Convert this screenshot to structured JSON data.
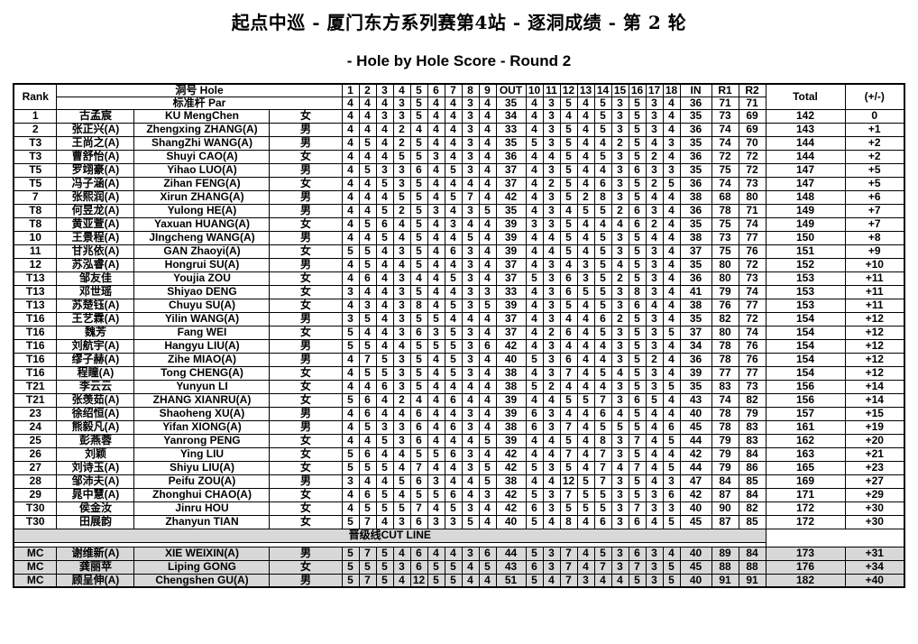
{
  "title": "起点中巡 - 厦门东方系列赛第4站 - 逐洞成绩 - 第 2 轮",
  "subtitle": "- Hole by Hole Score - Round 2",
  "table": {
    "header": {
      "rank": "Rank",
      "hole_label": "洞号 Hole",
      "par_label": "标准杆 Par",
      "hole_numbers": [
        "1",
        "2",
        "3",
        "4",
        "5",
        "6",
        "7",
        "8",
        "9",
        "OUT",
        "10",
        "11",
        "12",
        "13",
        "14",
        "15",
        "16",
        "17",
        "18",
        "IN",
        "R1",
        "R2"
      ],
      "par_values": [
        "4",
        "4",
        "4",
        "3",
        "5",
        "4",
        "4",
        "3",
        "4",
        "35",
        "4",
        "3",
        "5",
        "4",
        "5",
        "3",
        "5",
        "3",
        "4",
        "36",
        "71",
        "71"
      ],
      "total": "Total",
      "plus_minus": "(+/-)"
    },
    "cut_line_label": "晋级线CUT LINE",
    "players": [
      {
        "rank": "1",
        "name_cn": "古孟宸",
        "name_en": "KU MengChen",
        "gender": "女",
        "scores": [
          4,
          4,
          3,
          3,
          5,
          4,
          4,
          3,
          4,
          34,
          4,
          3,
          4,
          4,
          5,
          3,
          5,
          3,
          4,
          35,
          73,
          69
        ],
        "total": 142,
        "to_par": "0"
      },
      {
        "rank": "2",
        "name_cn": "张正兴(A)",
        "name_en": "Zhengxing ZHANG(A)",
        "gender": "男",
        "scores": [
          4,
          4,
          4,
          2,
          4,
          4,
          4,
          3,
          4,
          33,
          4,
          3,
          5,
          4,
          5,
          3,
          5,
          3,
          4,
          36,
          74,
          69
        ],
        "total": 143,
        "to_par": "+1"
      },
      {
        "rank": "T3",
        "name_cn": "王尚之(A)",
        "name_en": "ShangZhi WANG(A)",
        "gender": "男",
        "scores": [
          4,
          5,
          4,
          2,
          5,
          4,
          4,
          3,
          4,
          35,
          5,
          3,
          5,
          4,
          4,
          2,
          5,
          4,
          3,
          35,
          74,
          70
        ],
        "total": 144,
        "to_par": "+2"
      },
      {
        "rank": "T3",
        "name_cn": "曹舒怡(A)",
        "name_en": "Shuyi CAO(A)",
        "gender": "女",
        "scores": [
          4,
          4,
          4,
          5,
          5,
          3,
          4,
          3,
          4,
          36,
          4,
          4,
          5,
          4,
          5,
          3,
          5,
          2,
          4,
          36,
          72,
          72
        ],
        "total": 144,
        "to_par": "+2"
      },
      {
        "rank": "T5",
        "name_cn": "罗翊豪(A)",
        "name_en": "Yihao LUO(A)",
        "gender": "男",
        "scores": [
          4,
          5,
          3,
          3,
          6,
          4,
          5,
          3,
          4,
          37,
          4,
          3,
          5,
          4,
          4,
          3,
          6,
          3,
          3,
          35,
          75,
          72
        ],
        "total": 147,
        "to_par": "+5"
      },
      {
        "rank": "T5",
        "name_cn": "冯子涵(A)",
        "name_en": "Zihan FENG(A)",
        "gender": "女",
        "scores": [
          4,
          4,
          5,
          3,
          5,
          4,
          4,
          4,
          4,
          37,
          4,
          2,
          5,
          4,
          6,
          3,
          5,
          2,
          5,
          36,
          74,
          73
        ],
        "total": 147,
        "to_par": "+5"
      },
      {
        "rank": "7",
        "name_cn": "张熙润(A)",
        "name_en": "Xirun ZHANG(A)",
        "gender": "男",
        "scores": [
          4,
          4,
          4,
          5,
          5,
          4,
          5,
          7,
          4,
          42,
          4,
          3,
          5,
          2,
          8,
          3,
          5,
          4,
          4,
          38,
          68,
          80
        ],
        "total": 148,
        "to_par": "+6"
      },
      {
        "rank": "T8",
        "name_cn": "何昱龙(A)",
        "name_en": "Yulong HE(A)",
        "gender": "男",
        "scores": [
          4,
          4,
          5,
          2,
          5,
          3,
          4,
          3,
          5,
          35,
          4,
          3,
          4,
          5,
          5,
          2,
          6,
          3,
          4,
          36,
          78,
          71
        ],
        "total": 149,
        "to_par": "+7"
      },
      {
        "rank": "T8",
        "name_cn": "黄亚萱(A)",
        "name_en": "Yaxuan HUANG(A)",
        "gender": "女",
        "scores": [
          4,
          5,
          6,
          4,
          5,
          4,
          3,
          4,
          4,
          39,
          3,
          3,
          5,
          4,
          4,
          4,
          6,
          2,
          4,
          35,
          75,
          74
        ],
        "total": 149,
        "to_par": "+7"
      },
      {
        "rank": "10",
        "name_cn": "王景程(A)",
        "name_en": "JIngcheng WANG(A)",
        "gender": "男",
        "scores": [
          4,
          4,
          5,
          4,
          5,
          4,
          4,
          5,
          4,
          39,
          4,
          4,
          5,
          4,
          5,
          3,
          5,
          4,
          4,
          38,
          73,
          77
        ],
        "total": 150,
        "to_par": "+8"
      },
      {
        "rank": "11",
        "name_cn": "甘兆依(A)",
        "name_en": "GAN Zhaoyi(A)",
        "gender": "女",
        "scores": [
          5,
          5,
          4,
          3,
          5,
          4,
          6,
          3,
          4,
          39,
          4,
          4,
          5,
          4,
          5,
          3,
          5,
          3,
          4,
          37,
          75,
          76
        ],
        "total": 151,
        "to_par": "+9"
      },
      {
        "rank": "12",
        "name_cn": "苏泓睿(A)",
        "name_en": "Hongrui SU(A)",
        "gender": "男",
        "scores": [
          4,
          5,
          4,
          4,
          5,
          4,
          4,
          3,
          4,
          37,
          4,
          3,
          4,
          3,
          5,
          4,
          5,
          3,
          4,
          35,
          80,
          72
        ],
        "total": 152,
        "to_par": "+10"
      },
      {
        "rank": "T13",
        "name_cn": "邹友佳",
        "name_en": "Youjia ZOU",
        "gender": "女",
        "scores": [
          4,
          6,
          4,
          3,
          4,
          4,
          5,
          3,
          4,
          37,
          5,
          3,
          6,
          3,
          5,
          2,
          5,
          3,
          4,
          36,
          80,
          73
        ],
        "total": 153,
        "to_par": "+11"
      },
      {
        "rank": "T13",
        "name_cn": "邓世瑶",
        "name_en": "Shiyao DENG",
        "gender": "女",
        "scores": [
          3,
          4,
          4,
          3,
          5,
          4,
          4,
          3,
          3,
          33,
          4,
          3,
          6,
          5,
          5,
          3,
          8,
          3,
          4,
          41,
          79,
          74
        ],
        "total": 153,
        "to_par": "+11"
      },
      {
        "rank": "T13",
        "name_cn": "苏楚钰(A)",
        "name_en": "Chuyu SU(A)",
        "gender": "女",
        "scores": [
          4,
          3,
          4,
          3,
          8,
          4,
          5,
          3,
          5,
          39,
          4,
          3,
          5,
          4,
          5,
          3,
          6,
          4,
          4,
          38,
          76,
          77
        ],
        "total": 153,
        "to_par": "+11"
      },
      {
        "rank": "T16",
        "name_cn": "王艺霖(A)",
        "name_en": "Yilin WANG(A)",
        "gender": "男",
        "scores": [
          3,
          5,
          4,
          3,
          5,
          5,
          4,
          4,
          4,
          37,
          4,
          3,
          4,
          4,
          6,
          2,
          5,
          3,
          4,
          35,
          82,
          72
        ],
        "total": 154,
        "to_par": "+12"
      },
      {
        "rank": "T16",
        "name_cn": "魏芳",
        "name_en": "Fang WEI",
        "gender": "女",
        "scores": [
          5,
          4,
          4,
          3,
          6,
          3,
          5,
          3,
          4,
          37,
          4,
          2,
          6,
          4,
          5,
          3,
          5,
          3,
          5,
          37,
          80,
          74
        ],
        "total": 154,
        "to_par": "+12"
      },
      {
        "rank": "T16",
        "name_cn": "刘航宇(A)",
        "name_en": "Hangyu LIU(A)",
        "gender": "男",
        "scores": [
          5,
          5,
          4,
          4,
          5,
          5,
          5,
          3,
          6,
          42,
          4,
          3,
          4,
          4,
          4,
          3,
          5,
          3,
          4,
          34,
          78,
          76
        ],
        "total": 154,
        "to_par": "+12"
      },
      {
        "rank": "T16",
        "name_cn": "缪子赫(A)",
        "name_en": "Zihe MIAO(A)",
        "gender": "男",
        "scores": [
          4,
          7,
          5,
          3,
          5,
          4,
          5,
          3,
          4,
          40,
          5,
          3,
          6,
          4,
          4,
          3,
          5,
          2,
          4,
          36,
          78,
          76
        ],
        "total": 154,
        "to_par": "+12"
      },
      {
        "rank": "T16",
        "name_cn": "程瞳(A)",
        "name_en": "Tong CHENG(A)",
        "gender": "女",
        "scores": [
          4,
          5,
          5,
          3,
          5,
          4,
          5,
          3,
          4,
          38,
          4,
          3,
          7,
          4,
          5,
          4,
          5,
          3,
          4,
          39,
          77,
          77
        ],
        "total": 154,
        "to_par": "+12"
      },
      {
        "rank": "T21",
        "name_cn": "李云云",
        "name_en": "Yunyun LI",
        "gender": "女",
        "scores": [
          4,
          4,
          6,
          3,
          5,
          4,
          4,
          4,
          4,
          38,
          5,
          2,
          4,
          4,
          4,
          3,
          5,
          3,
          5,
          35,
          83,
          73
        ],
        "total": 156,
        "to_par": "+14"
      },
      {
        "rank": "T21",
        "name_cn": "张羡茹(A)",
        "name_en": "ZHANG XIANRU(A)",
        "gender": "女",
        "scores": [
          5,
          6,
          4,
          2,
          4,
          4,
          6,
          4,
          4,
          39,
          4,
          4,
          5,
          5,
          7,
          3,
          6,
          5,
          4,
          43,
          74,
          82
        ],
        "total": 156,
        "to_par": "+14"
      },
      {
        "rank": "23",
        "name_cn": "徐绍恒(A)",
        "name_en": "Shaoheng XU(A)",
        "gender": "男",
        "scores": [
          4,
          6,
          4,
          4,
          6,
          4,
          4,
          3,
          4,
          39,
          6,
          3,
          4,
          4,
          6,
          4,
          5,
          4,
          4,
          40,
          78,
          79
        ],
        "total": 157,
        "to_par": "+15"
      },
      {
        "rank": "24",
        "name_cn": "熊毅凡(A)",
        "name_en": "Yifan XIONG(A)",
        "gender": "男",
        "scores": [
          4,
          5,
          3,
          3,
          6,
          4,
          6,
          3,
          4,
          38,
          6,
          3,
          7,
          4,
          5,
          5,
          5,
          4,
          6,
          45,
          78,
          83
        ],
        "total": 161,
        "to_par": "+19"
      },
      {
        "rank": "25",
        "name_cn": "彭燕蓉",
        "name_en": "Yanrong PENG",
        "gender": "女",
        "scores": [
          4,
          4,
          5,
          3,
          6,
          4,
          4,
          4,
          5,
          39,
          4,
          4,
          5,
          4,
          8,
          3,
          7,
          4,
          5,
          44,
          79,
          83
        ],
        "total": 162,
        "to_par": "+20"
      },
      {
        "rank": "26",
        "name_cn": "刘颖",
        "name_en": "Ying LIU",
        "gender": "女",
        "scores": [
          5,
          6,
          4,
          4,
          5,
          5,
          6,
          3,
          4,
          42,
          4,
          4,
          7,
          4,
          7,
          3,
          5,
          4,
          4,
          42,
          79,
          84
        ],
        "total": 163,
        "to_par": "+21"
      },
      {
        "rank": "27",
        "name_cn": "刘诗玉(A)",
        "name_en": "Shiyu LIU(A)",
        "gender": "女",
        "scores": [
          5,
          5,
          5,
          4,
          7,
          4,
          4,
          3,
          5,
          42,
          5,
          3,
          5,
          4,
          7,
          4,
          7,
          4,
          5,
          44,
          79,
          86
        ],
        "total": 165,
        "to_par": "+23"
      },
      {
        "rank": "28",
        "name_cn": "邹沛夫(A)",
        "name_en": "Peifu ZOU(A)",
        "gender": "男",
        "scores": [
          3,
          4,
          4,
          5,
          6,
          3,
          4,
          4,
          5,
          38,
          4,
          4,
          12,
          5,
          7,
          3,
          5,
          4,
          3,
          47,
          84,
          85
        ],
        "total": 169,
        "to_par": "+27"
      },
      {
        "rank": "29",
        "name_cn": "晁中慧(A)",
        "name_en": "Zhonghui CHAO(A)",
        "gender": "女",
        "scores": [
          4,
          6,
          5,
          4,
          5,
          5,
          6,
          4,
          3,
          42,
          5,
          3,
          7,
          5,
          5,
          3,
          5,
          3,
          6,
          42,
          87,
          84
        ],
        "total": 171,
        "to_par": "+29"
      },
      {
        "rank": "T30",
        "name_cn": "侯金汝",
        "name_en": "Jinru HOU",
        "gender": "女",
        "scores": [
          4,
          5,
          5,
          5,
          7,
          4,
          5,
          3,
          4,
          42,
          6,
          3,
          5,
          5,
          5,
          3,
          7,
          3,
          3,
          40,
          90,
          82
        ],
        "total": 172,
        "to_par": "+30"
      },
      {
        "rank": "T30",
        "name_cn": "田展韵",
        "name_en": "Zhanyun TIAN",
        "gender": "女",
        "scores": [
          5,
          7,
          4,
          3,
          6,
          3,
          3,
          5,
          4,
          40,
          5,
          4,
          8,
          4,
          6,
          3,
          6,
          4,
          5,
          45,
          87,
          85
        ],
        "total": 172,
        "to_par": "+30"
      }
    ],
    "mc_players": [
      {
        "rank": "MC",
        "name_cn": "谢维新(A)",
        "name_en": "XIE WEIXIN(A)",
        "gender": "男",
        "scores": [
          5,
          7,
          5,
          4,
          6,
          4,
          4,
          3,
          6,
          44,
          5,
          3,
          7,
          4,
          5,
          3,
          6,
          3,
          4,
          40,
          89,
          84
        ],
        "total": 173,
        "to_par": "+31"
      },
      {
        "rank": "MC",
        "name_cn": "龚丽苹",
        "name_en": "Liping GONG",
        "gender": "女",
        "scores": [
          5,
          5,
          5,
          3,
          6,
          5,
          5,
          4,
          5,
          43,
          6,
          3,
          7,
          4,
          7,
          3,
          7,
          3,
          5,
          45,
          88,
          88
        ],
        "total": 176,
        "to_par": "+34"
      },
      {
        "rank": "MC",
        "name_cn": "顾呈伸(A)",
        "name_en": "Chengshen GU(A)",
        "gender": "男",
        "scores": [
          5,
          7,
          5,
          4,
          12,
          5,
          5,
          4,
          4,
          51,
          5,
          4,
          7,
          3,
          4,
          4,
          5,
          3,
          5,
          40,
          91,
          91
        ],
        "total": 182,
        "to_par": "+40"
      }
    ]
  }
}
